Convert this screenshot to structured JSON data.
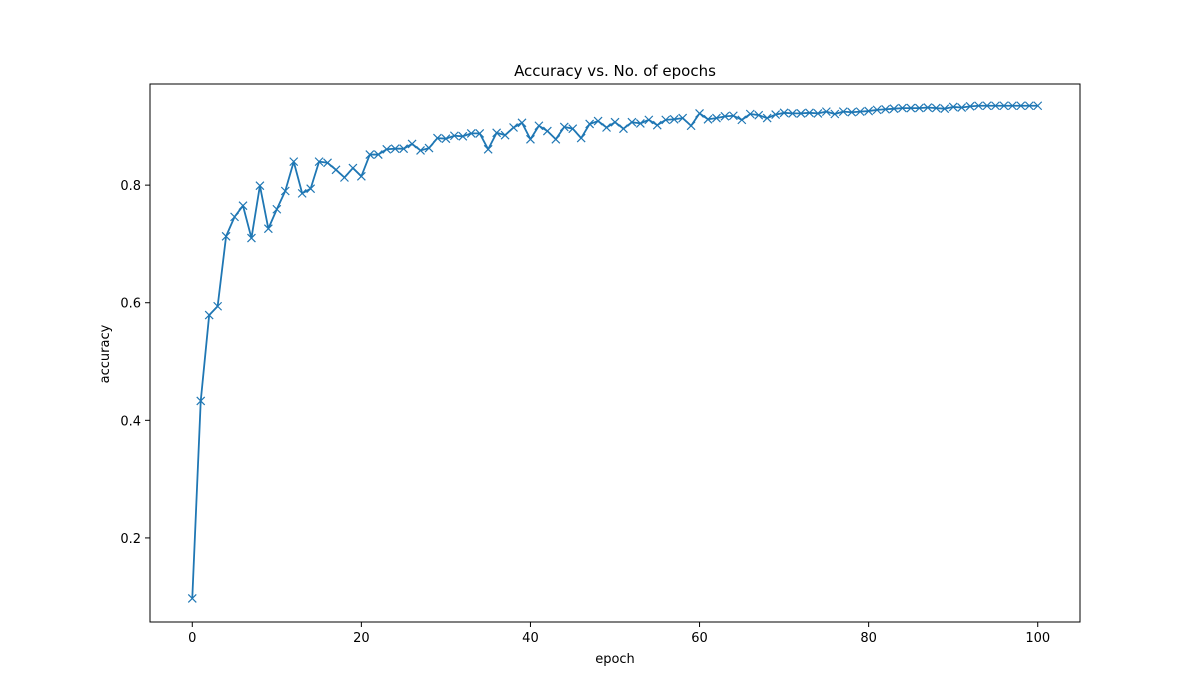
{
  "chart_data": {
    "type": "line",
    "title": "Accuracy vs. No. of epochs",
    "xlabel": "epoch",
    "ylabel": "accuracy",
    "xlim": [
      -5,
      105
    ],
    "ylim": [
      0.057,
      0.972
    ],
    "xticks": [
      0,
      20,
      40,
      60,
      80,
      100
    ],
    "yticks": [
      0.2,
      0.4,
      0.6,
      0.8
    ],
    "grid": false,
    "marker": "x",
    "color": "#1f77b4",
    "x": [
      0,
      1,
      2,
      3,
      4,
      5,
      6,
      7,
      8,
      9,
      10,
      11,
      12,
      13,
      14,
      15,
      16,
      17,
      18,
      19,
      20,
      21,
      22,
      23,
      24,
      25,
      26,
      27,
      28,
      29,
      30,
      31,
      32,
      33,
      34,
      35,
      36,
      37,
      38,
      39,
      40,
      41,
      42,
      43,
      44,
      45,
      46,
      47,
      48,
      49,
      50,
      51,
      52,
      53,
      54,
      55,
      56,
      57,
      58,
      59,
      60,
      61,
      62,
      63,
      64,
      65,
      66,
      67,
      68,
      69,
      70,
      71,
      72,
      73,
      74,
      75,
      76,
      77,
      78,
      79,
      80,
      81,
      82,
      83,
      84,
      85,
      86,
      87,
      88,
      89,
      90,
      91,
      92,
      93,
      94,
      95,
      96,
      97,
      98,
      99,
      100
    ],
    "series": [
      {
        "values": [
          0.097,
          0.433,
          0.579,
          0.594,
          0.713,
          0.746,
          0.765,
          0.71,
          0.799,
          0.726,
          0.759,
          0.79,
          0.84,
          0.786,
          0.794,
          0.84,
          0.838,
          0.826,
          0.813,
          0.829,
          0.815,
          0.852,
          0.852,
          0.861,
          0.862,
          0.862,
          0.87,
          0.859,
          0.863,
          0.88,
          0.879,
          0.884,
          0.883,
          0.888,
          0.888,
          0.861,
          0.889,
          0.885,
          0.898,
          0.906,
          0.878,
          0.901,
          0.892,
          0.878,
          0.899,
          0.896,
          0.88,
          0.904,
          0.909,
          0.898,
          0.907,
          0.896,
          0.907,
          0.905,
          0.911,
          0.902,
          0.911,
          0.912,
          0.914,
          0.901,
          0.922,
          0.912,
          0.914,
          0.917,
          0.918,
          0.911,
          0.921,
          0.919,
          0.914,
          0.92,
          0.923,
          0.922,
          0.922,
          0.923,
          0.922,
          0.925,
          0.921,
          0.925,
          0.924,
          0.925,
          0.926,
          0.928,
          0.929,
          0.93,
          0.931,
          0.931,
          0.931,
          0.932,
          0.931,
          0.93,
          0.933,
          0.932,
          0.934,
          0.935,
          0.935,
          0.935,
          0.935,
          0.935,
          0.935,
          0.935,
          0.935
        ]
      }
    ]
  }
}
